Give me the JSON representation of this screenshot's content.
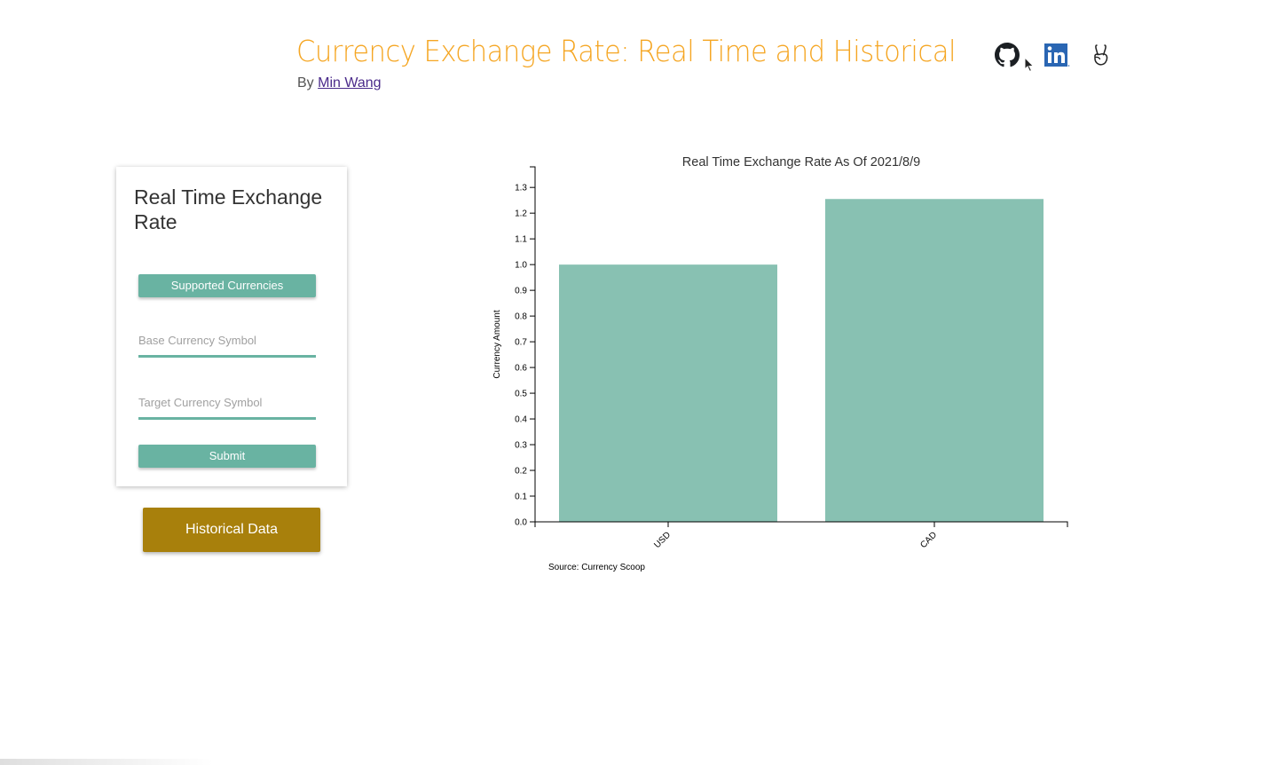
{
  "header": {
    "title": "Currency Exchange Rate: Real Time and Historical",
    "by_prefix": "By",
    "author": "Min Wang",
    "social_icons": [
      "github-icon",
      "linkedin-icon",
      "angellist-icon"
    ]
  },
  "card": {
    "title": "Real Time Exchange Rate",
    "supported_label": "Supported Currencies",
    "base_placeholder": "Base Currency Symbol",
    "base_value": "",
    "target_placeholder": "Target Currency Symbol",
    "target_value": "",
    "submit_label": "Submit"
  },
  "historical_label": "Historical Data",
  "colors": {
    "title": "#f5a623",
    "teal": "#69b3a2",
    "bar": "#88c1b2",
    "historical": "#a8800c"
  },
  "chart_data": {
    "type": "bar",
    "title": "Real Time Exchange Rate As Of 2021/8/9",
    "categories": [
      "USD",
      "CAD"
    ],
    "values": [
      1.0,
      1.255
    ],
    "ylabel": "Currency Amount",
    "xlabel": "",
    "ylim": [
      0,
      1.38
    ],
    "yticks": [
      "0.0",
      "0.1",
      "0.2",
      "0.3",
      "0.4",
      "0.5",
      "0.6",
      "0.7",
      "0.8",
      "0.9",
      "1.0",
      "1.1",
      "1.2",
      "1.3"
    ],
    "grid": false,
    "source": "Source: Currency Scoop"
  }
}
